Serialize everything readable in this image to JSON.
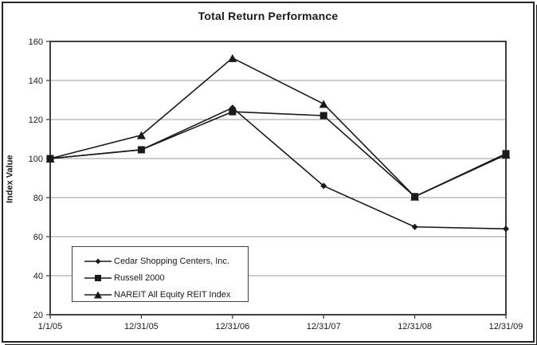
{
  "chart_data": {
    "type": "line",
    "title": "Total Return Performance",
    "ylabel": "Index Value",
    "xlabel": "",
    "categories": [
      "1/1/05",
      "12/31/05",
      "12/31/06",
      "12/31/07",
      "12/31/08",
      "12/31/09"
    ],
    "series": [
      {
        "name": "Cedar Shopping Centers, Inc.",
        "marker": "diamond",
        "values": [
          100,
          104.5,
          126,
          86,
          65,
          64
        ]
      },
      {
        "name": "Russell 2000",
        "marker": "square",
        "values": [
          100,
          104.5,
          124,
          122,
          80.5,
          102.5
        ]
      },
      {
        "name": "NAREIT All Equity REIT Index",
        "marker": "triangle",
        "values": [
          100,
          112,
          151.5,
          128,
          80.5,
          102
        ]
      }
    ],
    "ylim": [
      20,
      160
    ],
    "ytick_step": 20,
    "grid": "horizontal",
    "legend_position": "inside-bottom-left",
    "line_color": "#1a1a1a",
    "axis_color": "#404040",
    "grid_color": "#999999",
    "text_color": "#1a1a1a"
  }
}
